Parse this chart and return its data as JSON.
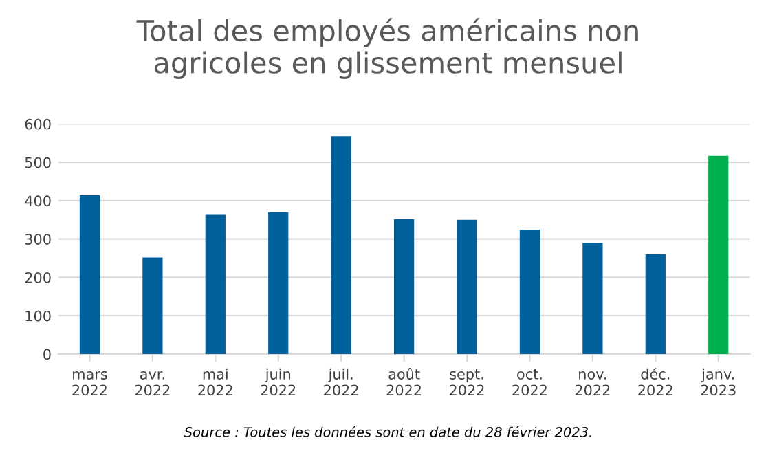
{
  "chart_data": {
    "type": "bar",
    "title": "Total des employés américains non\nagricoles en glissement mensuel",
    "categories": [
      "mars\n2022",
      "avr.\n2022",
      "mai\n2022",
      "juin\n2022",
      "juil.\n2022",
      "août\n2022",
      "sept.\n2022",
      "oct.\n2022",
      "nov.\n2022",
      "déc.\n2022",
      "janv.\n2023"
    ],
    "values": [
      414,
      252,
      363,
      370,
      568,
      352,
      350,
      324,
      290,
      260,
      517
    ],
    "colors": [
      "#00609c",
      "#00609c",
      "#00609c",
      "#00609c",
      "#00609c",
      "#00609c",
      "#00609c",
      "#00609c",
      "#00609c",
      "#00609c",
      "#00b050"
    ],
    "ylim": [
      0,
      600
    ],
    "yticks": [
      0,
      100,
      200,
      300,
      400,
      500,
      600
    ],
    "grid": "y",
    "annotations": [
      "Source : Toutes les données sont en date du 28 février 2023."
    ]
  }
}
